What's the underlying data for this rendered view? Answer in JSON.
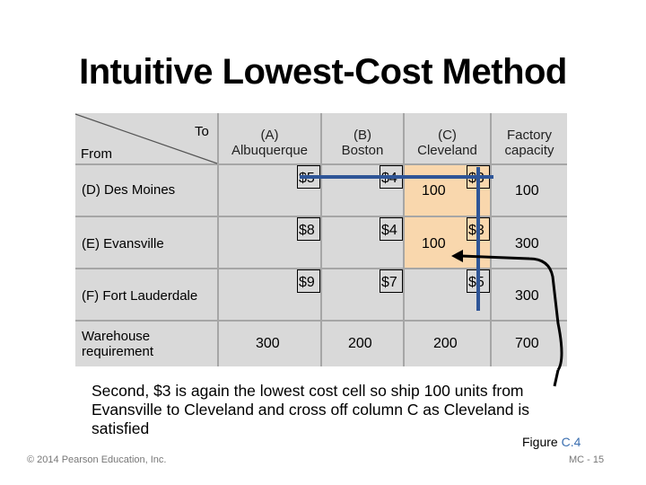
{
  "title": "Intuitive Lowest-Cost Method",
  "table": {
    "corner_to": "To",
    "corner_from": "From",
    "columns": [
      {
        "line1": "(A)",
        "line2": "Albuquerque"
      },
      {
        "line1": "(B)",
        "line2": "Boston"
      },
      {
        "line1": "(C)",
        "line2": "Cleveland"
      },
      {
        "line1": "Factory",
        "line2": "capacity"
      }
    ],
    "rows": [
      {
        "label": "(D) Des Moines",
        "costs": [
          "$5",
          "$4",
          "$3"
        ],
        "allocations": [
          "",
          "",
          "100"
        ],
        "capacity": "100"
      },
      {
        "label": "(E) Evansville",
        "costs": [
          "$8",
          "$4",
          "$3"
        ],
        "allocations": [
          "",
          "",
          "100"
        ],
        "capacity": "300"
      },
      {
        "label": "(F) Fort Lauderdale",
        "costs": [
          "$9",
          "$7",
          "$5"
        ],
        "allocations": [
          "",
          "",
          ""
        ],
        "capacity": "300"
      }
    ],
    "requirement": {
      "label_line1": "Warehouse",
      "label_line2": "requirement",
      "values": [
        "300",
        "200",
        "200"
      ],
      "total": "700"
    },
    "highlight_color": "#f9d7ad",
    "line_color": "#2e5597"
  },
  "caption": "Second, $3 is again the lowest cost cell so ship 100 units from Evansville to Cleveland and cross off column C as Cleveland is satisfied",
  "figure": {
    "prefix": "Figure ",
    "number": "C.4"
  },
  "footer": {
    "copyright": "© 2014 Pearson Education, Inc.",
    "page": "MC - 15"
  }
}
